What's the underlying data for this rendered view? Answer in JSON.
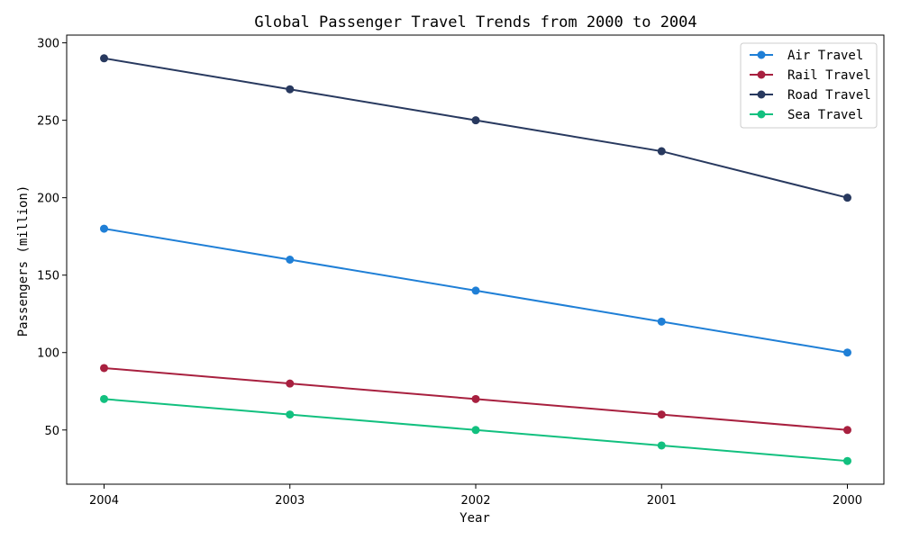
{
  "chart_data": {
    "type": "line",
    "title": "Global Passenger Travel Trends from 2000 to 2004",
    "xlabel": "Year",
    "ylabel": "Passengers (million)",
    "categories": [
      "2004",
      "2003",
      "2002",
      "2001",
      "2000"
    ],
    "ylim": [
      15,
      305
    ],
    "yticks": [
      50,
      100,
      150,
      200,
      250,
      300
    ],
    "grid": false,
    "legend_position": "top-right",
    "series": [
      {
        "name": "Air Travel",
        "color": "#1f7fd6",
        "values": [
          180,
          160,
          140,
          120,
          100
        ]
      },
      {
        "name": "Rail Travel",
        "color": "#a8203f",
        "values": [
          90,
          80,
          70,
          60,
          50
        ]
      },
      {
        "name": "Road Travel",
        "color": "#28395f",
        "values": [
          290,
          270,
          250,
          230,
          200
        ]
      },
      {
        "name": "Sea Travel",
        "color": "#12c07f",
        "values": [
          70,
          60,
          50,
          40,
          30
        ]
      }
    ]
  }
}
